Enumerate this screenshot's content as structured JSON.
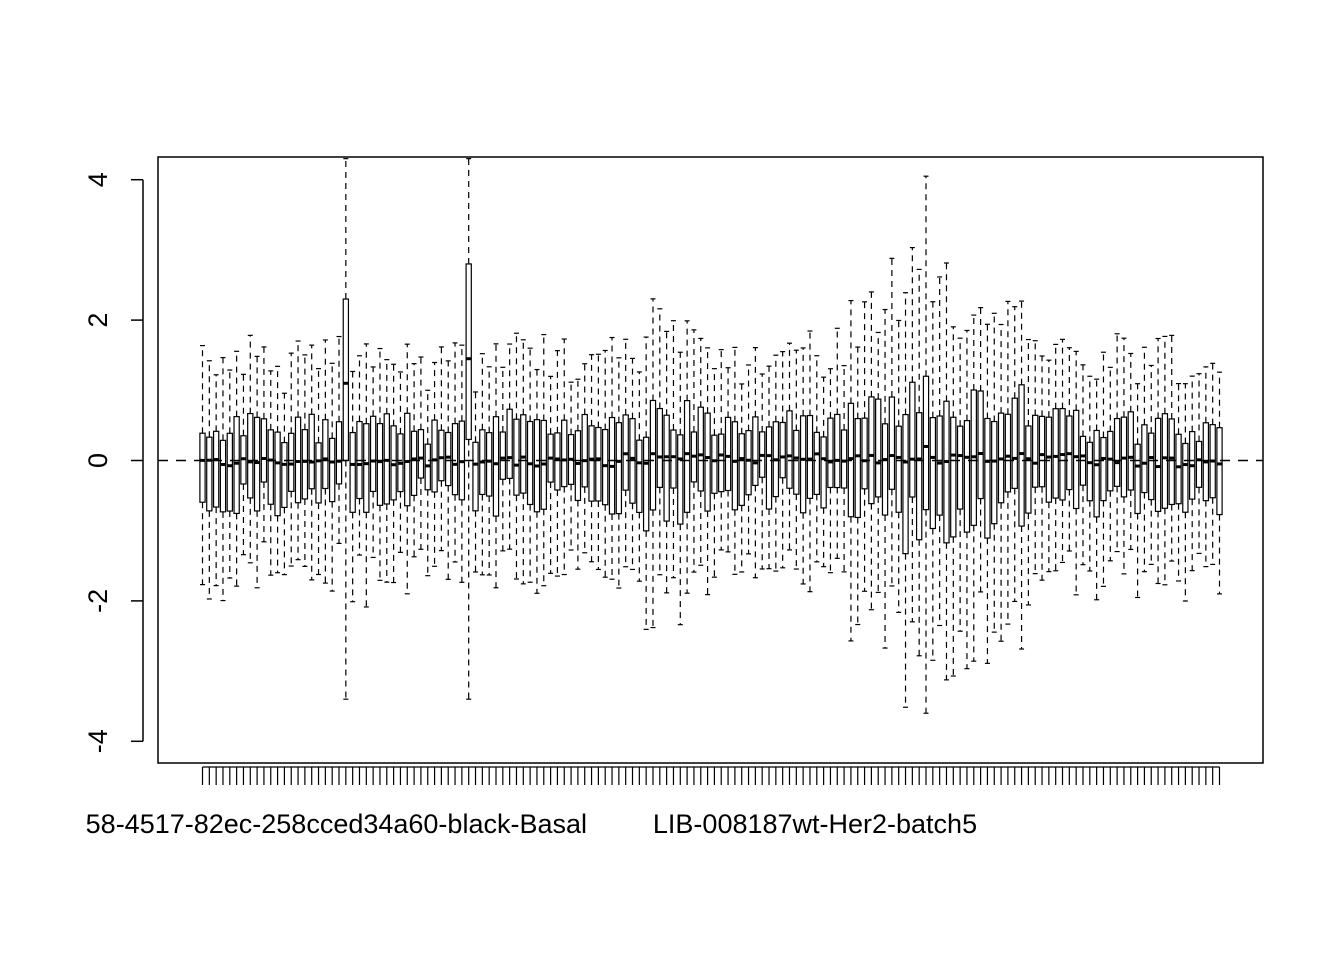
{
  "chart_data": {
    "type": "boxplot",
    "title": "",
    "xlabel": "",
    "ylabel": "",
    "ylim": [
      -4.3,
      4.3
    ],
    "yticks": [
      -4,
      -2,
      0,
      2,
      4
    ],
    "ytick_labels": [
      "-4",
      "-2",
      "0",
      "2",
      "4"
    ],
    "reference_line": {
      "y": 0,
      "style": "dashed"
    },
    "n_boxes": 150,
    "visible_category_labels": [
      "58-4517-82ec-258cced34a60-black-Basal",
      "LIB-008187wt-Her2-batch5"
    ],
    "grid": false,
    "legend": "none",
    "typical_box": {
      "lower_whisker": -1.4,
      "q1": -0.4,
      "median": 0.0,
      "q3": 0.35,
      "upper_whisker": 1.2
    },
    "notable_boxes": [
      {
        "index": 21,
        "lower_whisker": -3.4,
        "q1": 0.0,
        "median": 1.1,
        "q3": 2.3,
        "upper_whisker": 4.3
      },
      {
        "index": 39,
        "lower_whisker": -3.4,
        "q1": 0.3,
        "median": 1.45,
        "q3": 2.8,
        "upper_whisker": 4.3
      },
      {
        "index": 106,
        "lower_whisker": -3.6,
        "q1": -0.7,
        "median": 0.2,
        "q3": 1.2,
        "upper_whisker": 4.05
      }
    ]
  }
}
